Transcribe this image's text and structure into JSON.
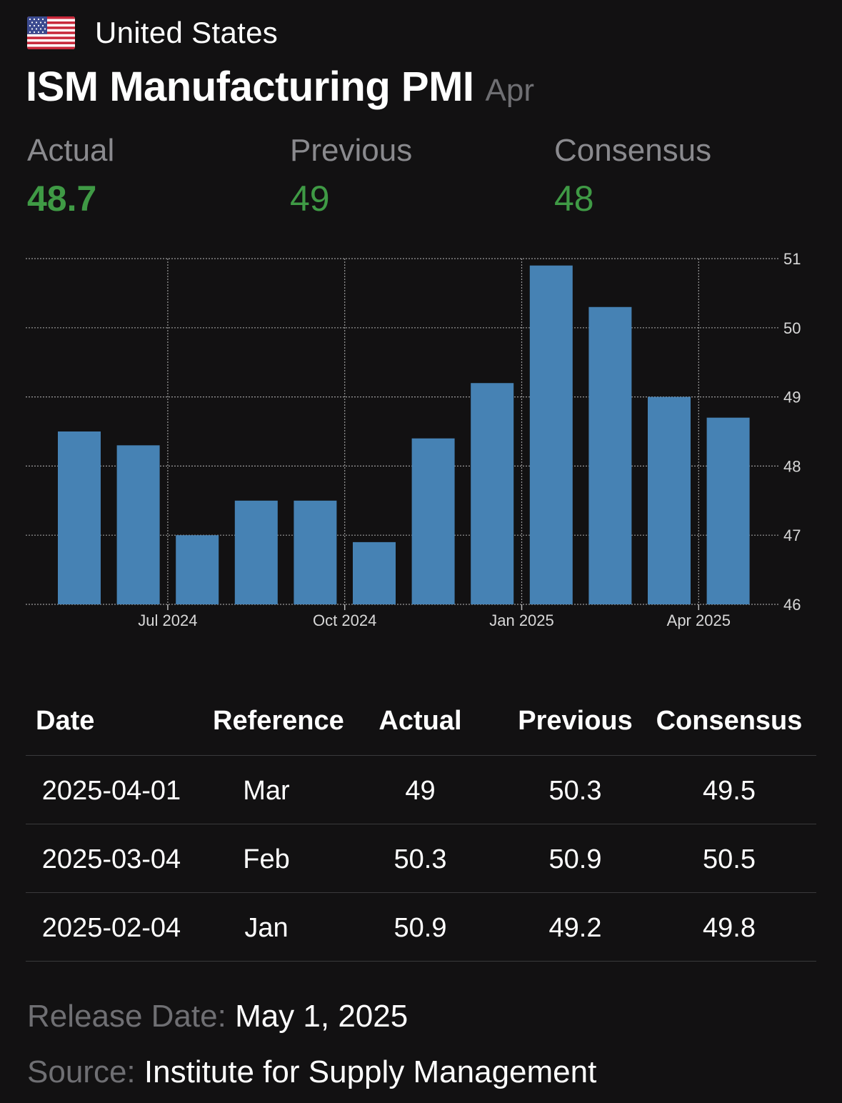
{
  "header": {
    "country": "United States",
    "flag_icon": "us-flag-icon",
    "title": "ISM Manufacturing PMI",
    "period": "Apr"
  },
  "stats": {
    "actual_label": "Actual",
    "actual_value": "48.7",
    "previous_label": "Previous",
    "previous_value": "49",
    "consensus_label": "Consensus",
    "consensus_value": "48",
    "value_color": "#3f9a45"
  },
  "chart_data": {
    "type": "bar",
    "categories": [
      "2024-05",
      "2024-06",
      "2024-07",
      "2024-08",
      "2024-09",
      "2024-10",
      "2024-11",
      "2024-12",
      "2025-01",
      "2025-02",
      "2025-03",
      "2025-04"
    ],
    "values": [
      48.5,
      48.3,
      47.0,
      47.5,
      47.5,
      46.9,
      48.4,
      49.2,
      50.9,
      50.3,
      49.0,
      48.7
    ],
    "x_tick_labels": [
      {
        "category": "2024-07",
        "label": "Jul 2024"
      },
      {
        "category": "2024-10",
        "label": "Oct 2024"
      },
      {
        "category": "2025-01",
        "label": "Jan 2025"
      },
      {
        "category": "2025-04",
        "label": "Apr 2025"
      }
    ],
    "y_ticks": [
      46,
      47,
      48,
      49,
      50,
      51
    ],
    "ylim": [
      46,
      51
    ],
    "y_axis_side": "right",
    "grid": "dotted",
    "bar_color": "#4682b4",
    "title": "",
    "xlabel": "",
    "ylabel": ""
  },
  "table": {
    "headers": [
      "Date",
      "Reference",
      "Actual",
      "Previous",
      "Consensus"
    ],
    "rows": [
      [
        "2025-04-01",
        "Mar",
        "49",
        "50.3",
        "49.5"
      ],
      [
        "2025-03-04",
        "Feb",
        "50.3",
        "50.9",
        "50.5"
      ],
      [
        "2025-02-04",
        "Jan",
        "50.9",
        "49.2",
        "49.8"
      ]
    ]
  },
  "footer": {
    "release_label": "Release Date:",
    "release_value": "May 1, 2025",
    "source_label": "Source:",
    "source_value": "Institute for Supply Management"
  }
}
